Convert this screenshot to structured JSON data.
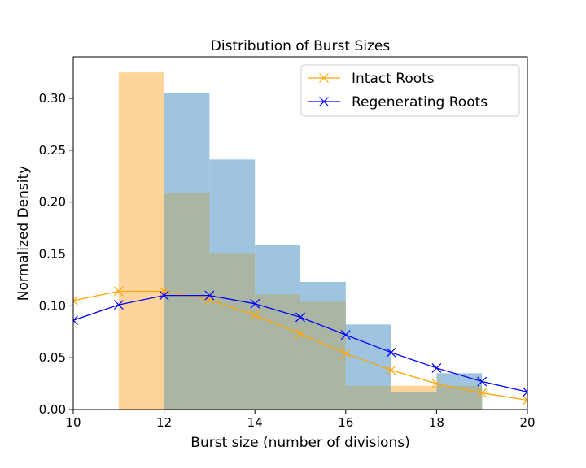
{
  "chart_data": {
    "type": "bar",
    "title": "Distribution of Burst Sizes",
    "xlabel": "Burst size (number of divisions)",
    "ylabel": "Normalized Density",
    "xlim": [
      10,
      20
    ],
    "ylim": [
      0,
      0.34
    ],
    "xticks": [
      10,
      12,
      14,
      16,
      18,
      20
    ],
    "yticks": [
      0.0,
      0.05,
      0.1,
      0.15,
      0.2,
      0.25,
      0.3
    ],
    "ytick_labels": [
      "0.00",
      "0.05",
      "0.10",
      "0.15",
      "0.20",
      "0.25",
      "0.30"
    ],
    "grid": false,
    "legend_position": "top-right",
    "histograms": [
      {
        "color": "#fdd59a",
        "bin_edges": [
          11,
          12,
          13,
          14,
          15,
          16,
          17,
          18,
          19
        ],
        "values": [
          0.325,
          0.209,
          0.151,
          0.111,
          0.104,
          0.023,
          0.023,
          0.023
        ]
      },
      {
        "color": "#9ec4e0",
        "bin_edges": [
          12,
          13,
          14,
          15,
          16,
          17,
          18,
          19
        ],
        "values": [
          0.305,
          0.241,
          0.159,
          0.123,
          0.082,
          0.017,
          0.035
        ]
      }
    ],
    "overlap_color": "#aab6a3",
    "series": [
      {
        "name": "Intact Roots",
        "color": "#ffa500",
        "x": [
          10,
          11,
          12,
          13,
          14,
          15,
          16,
          17,
          18,
          19,
          20
        ],
        "y": [
          0.105,
          0.114,
          0.114,
          0.106,
          0.091,
          0.073,
          0.054,
          0.038,
          0.025,
          0.016,
          0.009
        ]
      },
      {
        "name": "Regenerating Roots",
        "color": "#0000ff",
        "x": [
          10,
          11,
          12,
          13,
          14,
          15,
          16,
          17,
          18,
          19,
          20
        ],
        "y": [
          0.086,
          0.101,
          0.11,
          0.11,
          0.102,
          0.089,
          0.072,
          0.055,
          0.04,
          0.027,
          0.017
        ]
      }
    ]
  }
}
